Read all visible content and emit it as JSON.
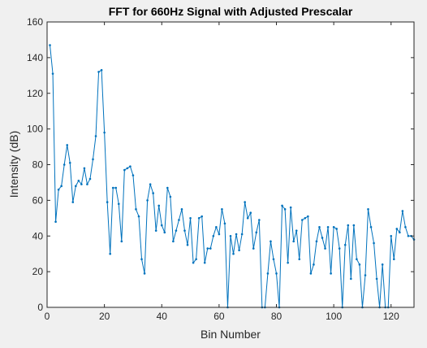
{
  "chart_data": {
    "type": "line",
    "title": "FFT for 660Hz Signal with Adjusted Prescalar",
    "xlabel": "Bin Number",
    "ylabel": "Intensity (dB)",
    "xlim": [
      0,
      128
    ],
    "ylim": [
      0,
      160
    ],
    "xticks": [
      0,
      20,
      40,
      60,
      80,
      100,
      120
    ],
    "yticks": [
      0,
      20,
      40,
      60,
      80,
      100,
      120,
      140,
      160
    ],
    "grid": false,
    "legend": "none",
    "series": [
      {
        "color": "#0072bd",
        "marker": "dot",
        "x": [
          1,
          2,
          3,
          4,
          5,
          6,
          7,
          8,
          9,
          10,
          11,
          12,
          13,
          14,
          15,
          16,
          17,
          18,
          19,
          20,
          21,
          22,
          23,
          24,
          25,
          26,
          27,
          28,
          29,
          30,
          31,
          32,
          33,
          34,
          35,
          36,
          37,
          38,
          39,
          40,
          41,
          42,
          43,
          44,
          45,
          46,
          47,
          48,
          49,
          50,
          51,
          52,
          53,
          54,
          55,
          56,
          57,
          58,
          59,
          60,
          61,
          62,
          63,
          64,
          65,
          66,
          67,
          68,
          69,
          70,
          71,
          72,
          73,
          74,
          75,
          76,
          77,
          78,
          79,
          80,
          81,
          82,
          83,
          84,
          85,
          86,
          87,
          88,
          89,
          90,
          91,
          92,
          93,
          94,
          95,
          96,
          97,
          98,
          99,
          100,
          101,
          102,
          103,
          104,
          105,
          106,
          107,
          108,
          109,
          110,
          111,
          112,
          113,
          114,
          115,
          116,
          117,
          118,
          119,
          120,
          121,
          122,
          123,
          124,
          125,
          126,
          127,
          128
        ],
        "y": [
          147,
          131,
          48,
          66,
          68,
          80,
          91,
          81,
          59,
          68,
          71,
          69,
          78,
          69,
          72,
          83,
          96,
          132,
          133,
          98,
          59,
          30,
          67,
          67,
          58,
          37,
          77,
          78,
          79,
          74,
          55,
          51,
          27,
          19,
          60,
          69,
          64,
          43,
          57,
          46,
          42,
          67,
          62,
          37,
          43,
          49,
          55,
          43,
          35,
          50,
          25,
          27,
          50,
          51,
          25,
          33,
          33,
          40,
          45,
          41,
          55,
          47,
          0,
          40,
          30,
          41,
          32,
          41,
          59,
          50,
          53,
          33,
          42,
          49,
          0,
          0,
          19,
          37,
          27,
          19,
          0,
          57,
          55,
          25,
          56,
          37,
          43,
          27,
          49,
          50,
          51,
          19,
          24,
          37,
          45,
          39,
          33,
          45,
          19,
          45,
          44,
          33,
          0,
          35,
          46,
          16,
          46,
          27,
          24,
          0,
          18,
          55,
          45,
          36,
          16,
          0,
          24,
          0,
          0,
          40,
          27,
          44,
          42,
          54,
          45,
          40,
          40,
          38
        ]
      }
    ]
  }
}
